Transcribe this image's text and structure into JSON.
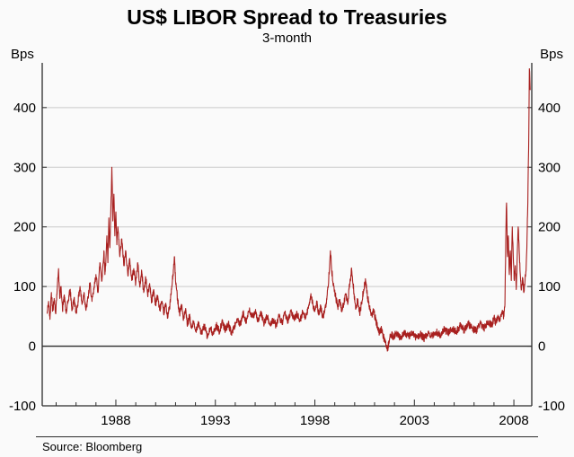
{
  "header": {
    "title": "US$ LIBOR Spread to Treasuries",
    "subtitle": "3-month"
  },
  "axes": {
    "unit_left": "Bps",
    "unit_right": "Bps"
  },
  "footer": {
    "source": "Source: Bloomberg"
  },
  "chart_data": {
    "type": "line",
    "title": "US$ LIBOR Spread to Treasuries",
    "subtitle": "3-month",
    "ylabel_left": "Bps",
    "ylabel_right": "Bps",
    "ylim": [
      -100,
      475
    ],
    "yticks": [
      -100,
      0,
      100,
      200,
      300,
      400
    ],
    "xlim": [
      1984.3,
      2008.9
    ],
    "xticks": [
      1988,
      1993,
      1998,
      2003,
      2008
    ],
    "minor_xtick_interval": 1,
    "grid": "horizontal",
    "zero_line": true,
    "legend": "none",
    "line_color": "#a8201f",
    "grid_color": "#c9c9c9",
    "axis_color": "#2b2b2b",
    "background": "#fafafa",
    "source": "Source: Bloomberg",
    "noise_amplitude": 6,
    "series": [
      {
        "name": "US$ 3-month LIBOR spread to Treasuries (bps)",
        "points": [
          [
            1984.55,
            55
          ],
          [
            1984.62,
            75
          ],
          [
            1984.69,
            45
          ],
          [
            1984.76,
            90
          ],
          [
            1984.83,
            60
          ],
          [
            1984.9,
            80
          ],
          [
            1984.97,
            55
          ],
          [
            1985.05,
            95
          ],
          [
            1985.12,
            130
          ],
          [
            1985.18,
            80
          ],
          [
            1985.25,
            100
          ],
          [
            1985.32,
            60
          ],
          [
            1985.4,
            85
          ],
          [
            1985.5,
            55
          ],
          [
            1985.6,
            75
          ],
          [
            1985.7,
            95
          ],
          [
            1985.8,
            60
          ],
          [
            1985.9,
            80
          ],
          [
            1986.0,
            55
          ],
          [
            1986.1,
            75
          ],
          [
            1986.2,
            100
          ],
          [
            1986.3,
            70
          ],
          [
            1986.4,
            90
          ],
          [
            1986.5,
            60
          ],
          [
            1986.6,
            80
          ],
          [
            1986.7,
            105
          ],
          [
            1986.8,
            75
          ],
          [
            1986.9,
            95
          ],
          [
            1987.0,
            120
          ],
          [
            1987.1,
            90
          ],
          [
            1987.2,
            140
          ],
          [
            1987.3,
            110
          ],
          [
            1987.4,
            160
          ],
          [
            1987.45,
            120
          ],
          [
            1987.5,
            145
          ],
          [
            1987.55,
            185
          ],
          [
            1987.6,
            140
          ],
          [
            1987.65,
            215
          ],
          [
            1987.7,
            165
          ],
          [
            1987.75,
            230
          ],
          [
            1987.8,
            300
          ],
          [
            1987.85,
            210
          ],
          [
            1987.9,
            255
          ],
          [
            1987.95,
            185
          ],
          [
            1988.0,
            225
          ],
          [
            1988.05,
            170
          ],
          [
            1988.1,
            200
          ],
          [
            1988.2,
            150
          ],
          [
            1988.3,
            180
          ],
          [
            1988.4,
            135
          ],
          [
            1988.5,
            160
          ],
          [
            1988.6,
            120
          ],
          [
            1988.7,
            145
          ],
          [
            1988.8,
            110
          ],
          [
            1988.9,
            130
          ],
          [
            1989.0,
            105
          ],
          [
            1989.1,
            140
          ],
          [
            1989.2,
            100
          ],
          [
            1989.3,
            125
          ],
          [
            1989.4,
            90
          ],
          [
            1989.5,
            115
          ],
          [
            1989.6,
            85
          ],
          [
            1989.7,
            105
          ],
          [
            1989.8,
            75
          ],
          [
            1989.9,
            95
          ],
          [
            1990.0,
            70
          ],
          [
            1990.1,
            85
          ],
          [
            1990.2,
            60
          ],
          [
            1990.3,
            75
          ],
          [
            1990.4,
            55
          ],
          [
            1990.5,
            70
          ],
          [
            1990.6,
            50
          ],
          [
            1990.7,
            65
          ],
          [
            1990.8,
            95
          ],
          [
            1990.9,
            130
          ],
          [
            1990.95,
            150
          ],
          [
            1991.0,
            110
          ],
          [
            1991.1,
            80
          ],
          [
            1991.2,
            55
          ],
          [
            1991.3,
            70
          ],
          [
            1991.4,
            45
          ],
          [
            1991.5,
            60
          ],
          [
            1991.6,
            35
          ],
          [
            1991.7,
            50
          ],
          [
            1991.8,
            30
          ],
          [
            1991.9,
            40
          ],
          [
            1992.0,
            25
          ],
          [
            1992.15,
            40
          ],
          [
            1992.3,
            20
          ],
          [
            1992.45,
            35
          ],
          [
            1992.6,
            15
          ],
          [
            1992.75,
            30
          ],
          [
            1992.9,
            20
          ],
          [
            1993.05,
            35
          ],
          [
            1993.2,
            25
          ],
          [
            1993.35,
            40
          ],
          [
            1993.5,
            28
          ],
          [
            1993.65,
            38
          ],
          [
            1993.8,
            22
          ],
          [
            1993.95,
            32
          ],
          [
            1994.1,
            45
          ],
          [
            1994.25,
            35
          ],
          [
            1994.4,
            55
          ],
          [
            1994.55,
            42
          ],
          [
            1994.7,
            60
          ],
          [
            1994.85,
            48
          ],
          [
            1995.0,
            58
          ],
          [
            1995.15,
            42
          ],
          [
            1995.3,
            55
          ],
          [
            1995.45,
            38
          ],
          [
            1995.6,
            50
          ],
          [
            1995.75,
            35
          ],
          [
            1995.9,
            45
          ],
          [
            1996.05,
            35
          ],
          [
            1996.2,
            50
          ],
          [
            1996.35,
            38
          ],
          [
            1996.5,
            55
          ],
          [
            1996.65,
            42
          ],
          [
            1996.8,
            58
          ],
          [
            1996.95,
            45
          ],
          [
            1997.1,
            55
          ],
          [
            1997.25,
            42
          ],
          [
            1997.4,
            58
          ],
          [
            1997.55,
            48
          ],
          [
            1997.7,
            68
          ],
          [
            1997.8,
            88
          ],
          [
            1997.9,
            70
          ],
          [
            1998.0,
            58
          ],
          [
            1998.1,
            72
          ],
          [
            1998.2,
            52
          ],
          [
            1998.3,
            66
          ],
          [
            1998.4,
            48
          ],
          [
            1998.5,
            60
          ],
          [
            1998.6,
            78
          ],
          [
            1998.7,
            115
          ],
          [
            1998.78,
            160
          ],
          [
            1998.85,
            125
          ],
          [
            1998.95,
            100
          ],
          [
            1999.05,
            82
          ],
          [
            1999.15,
            65
          ],
          [
            1999.25,
            78
          ],
          [
            1999.35,
            58
          ],
          [
            1999.45,
            72
          ],
          [
            1999.55,
            88
          ],
          [
            1999.65,
            70
          ],
          [
            1999.75,
            105
          ],
          [
            1999.85,
            128
          ],
          [
            1999.95,
            95
          ],
          [
            2000.05,
            62
          ],
          [
            2000.15,
            78
          ],
          [
            2000.25,
            55
          ],
          [
            2000.35,
            72
          ],
          [
            2000.45,
            95
          ],
          [
            2000.55,
            110
          ],
          [
            2000.65,
            82
          ],
          [
            2000.75,
            65
          ],
          [
            2000.85,
            52
          ],
          [
            2000.95,
            60
          ],
          [
            2001.05,
            45
          ],
          [
            2001.15,
            32
          ],
          [
            2001.25,
            22
          ],
          [
            2001.35,
            28
          ],
          [
            2001.45,
            15
          ],
          [
            2001.55,
            8
          ],
          [
            2001.65,
            -5
          ],
          [
            2001.75,
            12
          ],
          [
            2001.85,
            20
          ],
          [
            2001.95,
            15
          ],
          [
            2002.1,
            22
          ],
          [
            2002.3,
            14
          ],
          [
            2002.5,
            24
          ],
          [
            2002.7,
            16
          ],
          [
            2002.9,
            22
          ],
          [
            2003.1,
            14
          ],
          [
            2003.3,
            20
          ],
          [
            2003.5,
            13
          ],
          [
            2003.7,
            22
          ],
          [
            2003.9,
            17
          ],
          [
            2004.1,
            24
          ],
          [
            2004.3,
            18
          ],
          [
            2004.5,
            28
          ],
          [
            2004.7,
            22
          ],
          [
            2004.9,
            30
          ],
          [
            2005.1,
            24
          ],
          [
            2005.3,
            34
          ],
          [
            2005.5,
            27
          ],
          [
            2005.7,
            38
          ],
          [
            2005.9,
            30
          ],
          [
            2006.1,
            26
          ],
          [
            2006.3,
            38
          ],
          [
            2006.5,
            30
          ],
          [
            2006.7,
            42
          ],
          [
            2006.9,
            35
          ],
          [
            2007.0,
            48
          ],
          [
            2007.1,
            38
          ],
          [
            2007.2,
            52
          ],
          [
            2007.3,
            42
          ],
          [
            2007.4,
            58
          ],
          [
            2007.5,
            50
          ],
          [
            2007.55,
            70
          ],
          [
            2007.6,
            195
          ],
          [
            2007.63,
            240
          ],
          [
            2007.68,
            150
          ],
          [
            2007.72,
            185
          ],
          [
            2007.77,
            120
          ],
          [
            2007.82,
            160
          ],
          [
            2007.87,
            110
          ],
          [
            2007.92,
            200
          ],
          [
            2007.97,
            150
          ],
          [
            2008.02,
            110
          ],
          [
            2008.07,
            135
          ],
          [
            2008.12,
            95
          ],
          [
            2008.17,
            150
          ],
          [
            2008.22,
            200
          ],
          [
            2008.27,
            160
          ],
          [
            2008.32,
            120
          ],
          [
            2008.38,
            95
          ],
          [
            2008.44,
            115
          ],
          [
            2008.5,
            90
          ],
          [
            2008.56,
            110
          ],
          [
            2008.62,
            135
          ],
          [
            2008.66,
            180
          ],
          [
            2008.7,
            240
          ],
          [
            2008.74,
            330
          ],
          [
            2008.78,
            465
          ],
          [
            2008.82,
            430
          ]
        ]
      }
    ]
  }
}
